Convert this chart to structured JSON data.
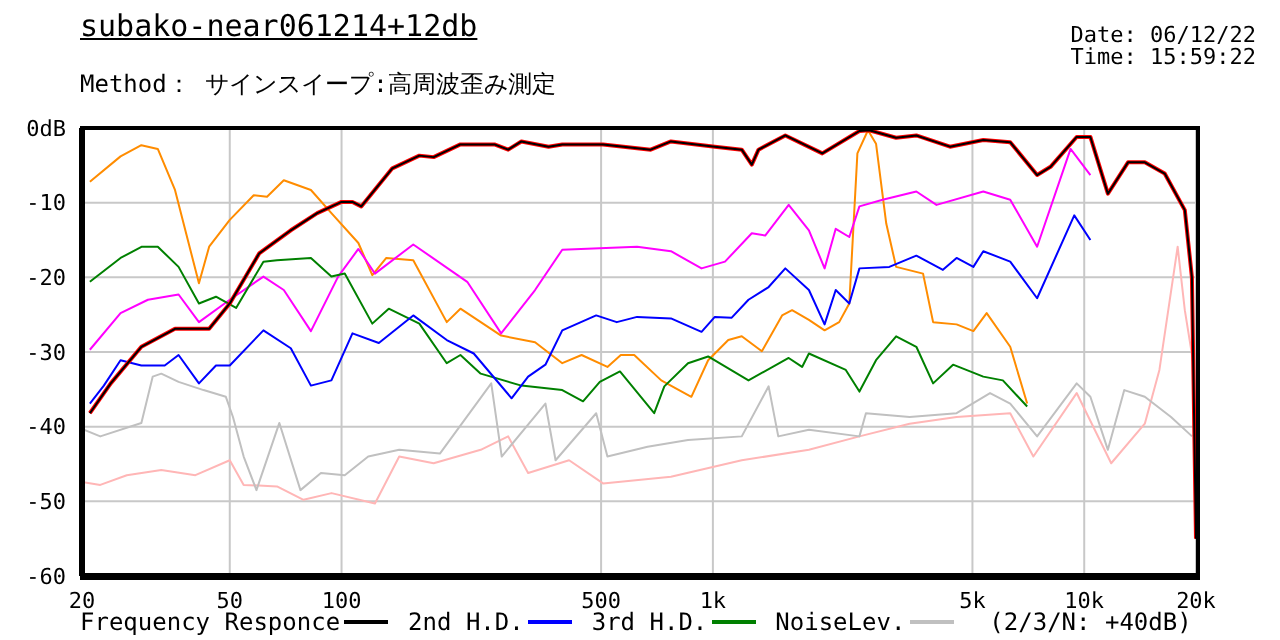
{
  "chart_data": {
    "type": "line",
    "title": "subako-near061214+12db",
    "subtitle": "Method： サインスイープ:高周波歪み測定",
    "annotations": [
      "Date: 06/12/22",
      "Time: 15:59:22",
      "(2/3/N: +40dB)"
    ],
    "xlim": [
      20,
      20000
    ],
    "xticks": [
      20,
      50,
      100,
      500,
      {
        "value": 1000,
        "label": "1k"
      },
      {
        "value": 5000,
        "label": "5k"
      },
      {
        "value": 10000,
        "label": "10k"
      },
      {
        "value": 20000,
        "label": "20k"
      }
    ],
    "ylim": [
      -60,
      0
    ],
    "yticks": [
      -60,
      -50,
      -40,
      -30,
      -20,
      -10,
      {
        "value": 0,
        "label": "0dB"
      }
    ],
    "log": "x",
    "grid": true,
    "legend": "bottom",
    "marker": "none",
    "line_style": "solid",
    "series": [
      {
        "color": "#ffb6b6",
        "x": [
          20,
          22.4,
          26.4,
          32.7,
          40.4,
          50,
          54.5,
          67,
          79,
          94,
          123,
          143,
          177,
          237,
          281,
          318,
          410,
          506,
          771,
          1196,
          1814,
          2481,
          3387,
          4532,
          6320,
          7296,
          9543,
          11820,
          14560,
          15940,
          17850,
          18660,
          19800
        ],
        "values": [
          -47.4,
          -47.8,
          -46.5,
          -45.8,
          -46.5,
          -44.5,
          -47.8,
          -48,
          -49.8,
          -48.9,
          -50.3,
          -44,
          -44.9,
          -43.1,
          -41.3,
          -46.2,
          -44.5,
          -47.6,
          -46.7,
          -44.5,
          -43.1,
          -41.3,
          -39.6,
          -38.7,
          -38.2,
          -44,
          -35.5,
          -44.9,
          -39.6,
          -32.4,
          -15.9,
          -24.4,
          -32.4
        ]
      },
      {
        "name": "NoiseLev.",
        "color": "#c0c0c0",
        "x": [
          20,
          22.4,
          28.9,
          31,
          32.7,
          36.4,
          42.5,
          48.8,
          51,
          54.5,
          59,
          68,
          77.5,
          88,
          102,
          118,
          143,
          184,
          253,
          270,
          354,
          377,
          485,
          520,
          667,
          857,
          1196,
          1413,
          1500,
          1814,
          2481,
          2583,
          3387,
          4532,
          5577,
          6320,
          7467,
          9543,
          10390,
          11580,
          12820,
          14560,
          17130,
          19520
        ],
        "values": [
          -40.3,
          -41.3,
          -39.5,
          -33.3,
          -32.9,
          -34,
          -35.1,
          -36,
          -38.7,
          -44,
          -48.5,
          -39.5,
          -48.5,
          -46.2,
          -46.5,
          -44,
          -43.1,
          -43.6,
          -34.2,
          -44,
          -36.9,
          -44.5,
          -38.2,
          -44,
          -42.7,
          -41.8,
          -41.3,
          -34.6,
          -41.3,
          -40.4,
          -41.3,
          -38.2,
          -38.7,
          -38.2,
          -35.5,
          -36.9,
          -41.3,
          -34.2,
          -36,
          -43.1,
          -35.1,
          -36,
          -38.7,
          -41.3
        ]
      },
      {
        "color": "#ff8c00",
        "x": [
          21,
          25.4,
          28.9,
          32,
          35.6,
          41.3,
          44,
          50,
          58,
          63,
          69.9,
          82.7,
          93.9,
          111,
          121,
          132,
          156,
          192,
          209,
          269,
          332,
          393,
          443,
          520,
          565,
          614,
          726,
          875,
          971,
          1100,
          1196,
          1355,
          1536,
          1634,
          1814,
          1999,
          2188,
          2330,
          2450,
          2616,
          2750,
          2930,
          3115,
          3681,
          3918,
          4532,
          5029,
          5461,
          6320,
          7020
        ],
        "values": [
          -7.2,
          -3.8,
          -2.3,
          -2.8,
          -8.3,
          -20.8,
          -15.9,
          -12.3,
          -9,
          -9.2,
          -7,
          -8.3,
          -11.4,
          -15.4,
          -19.7,
          -17.4,
          -17.7,
          -26,
          -24.2,
          -27.8,
          -28.7,
          -31.5,
          -30.4,
          -32,
          -30.4,
          -30.4,
          -33.8,
          -36,
          -31.1,
          -28.4,
          -27.9,
          -29.9,
          -25.1,
          -24.4,
          -25.7,
          -27.1,
          -26,
          -23.5,
          -3.4,
          -0.3,
          -2.1,
          -12.8,
          -18.6,
          -19.5,
          -26,
          -26.3,
          -27.2,
          -24.8,
          -29.3,
          -36.9
        ]
      },
      {
        "color": "#ff00ff",
        "x": [
          21,
          25.4,
          30.1,
          36.4,
          41.3,
          50,
          61.6,
          69.9,
          82.7,
          97.9,
          111,
          123,
          156,
          218,
          269,
          332,
          393,
          625,
          771,
          932,
          1078,
          1273,
          1383,
          1600,
          1814,
          1999,
          2142,
          2330,
          2481,
          2865,
          3531,
          4001,
          5348,
          6320,
          7467,
          9189,
          10390
        ],
        "values": [
          -29.7,
          -24.8,
          -23,
          -22.3,
          -26,
          -23,
          -19.9,
          -21.7,
          -27.2,
          -19.9,
          -16.2,
          -19.5,
          -15.6,
          -20.6,
          -27.5,
          -21.7,
          -16.3,
          -15.9,
          -16.5,
          -18.8,
          -17.9,
          -14.1,
          -14.4,
          -10.3,
          -13.7,
          -18.8,
          -13.5,
          -14.6,
          -10.5,
          -9.6,
          -8.5,
          -10.3,
          -8.5,
          -9.6,
          -15.9,
          -2.8,
          -6.3
        ]
      },
      {
        "name": "3rd H.D.",
        "color": "#008000",
        "x": [
          21,
          25.4,
          29,
          32,
          36.4,
          41.3,
          45.9,
          52,
          61.6,
          67,
          82.7,
          93.9,
          102,
          121,
          134,
          162,
          192,
          209,
          237,
          305,
          393,
          447,
          496,
          562,
          695,
          740,
          857,
          971,
          1247,
          1600,
          1739,
          1814,
          2280,
          2481,
          2750,
          3115,
          3531,
          3918,
          4434,
          5348,
          6038,
          7020
        ],
        "values": [
          -20.6,
          -17.4,
          -15.9,
          -15.9,
          -18.6,
          -23.5,
          -22.6,
          -24.1,
          -17.9,
          -17.7,
          -17.4,
          -19.9,
          -19.5,
          -26.2,
          -24.2,
          -26.2,
          -31.5,
          -30.4,
          -32.9,
          -34.5,
          -35.1,
          -36.6,
          -34,
          -32.6,
          -38.2,
          -34.6,
          -31.5,
          -30.6,
          -33.8,
          -30.8,
          -32,
          -30.2,
          -32.4,
          -35.3,
          -31.1,
          -27.9,
          -29.3,
          -34.2,
          -31.7,
          -33.3,
          -33.8,
          -37.3
        ]
      },
      {
        "name": "2nd H.D.",
        "color": "#0000ff",
        "x": [
          21,
          22.9,
          25.4,
          28.9,
          33.4,
          36.4,
          41.3,
          45.9,
          50,
          61.6,
          73,
          82.7,
          93.9,
          107,
          126,
          156,
          192,
          227,
          287,
          318,
          354,
          393,
          485,
          551,
          625,
          771,
          932,
          1012,
          1124,
          1247,
          1413,
          1567,
          1814,
          1999,
          2142,
          2330,
          2481,
          2986,
          3531,
          4164,
          4532,
          5029,
          5348,
          6320,
          7467,
          9401,
          10390
        ],
        "values": [
          -36.9,
          -34.5,
          -31.1,
          -31.8,
          -31.8,
          -30.4,
          -34.2,
          -31.8,
          -31.8,
          -27.1,
          -29.5,
          -34.5,
          -33.8,
          -27.5,
          -28.8,
          -25.1,
          -28.4,
          -30.2,
          -36.2,
          -33.3,
          -31.7,
          -27.1,
          -25.1,
          -26,
          -25.3,
          -25.5,
          -27.3,
          -25.3,
          -25.4,
          -23,
          -21.3,
          -18.8,
          -21.7,
          -26.3,
          -21.7,
          -23.5,
          -18.8,
          -18.6,
          -17.1,
          -19,
          -17.4,
          -18.6,
          -16.5,
          -17.9,
          -22.8,
          -11.7,
          -15
        ]
      },
      {
        "color": "#ff0000",
        "x": [
          21,
          23.9,
          28.9,
          35.6,
          44,
          50,
          60,
          73,
          86,
          100,
          107,
          113,
          137,
          162,
          177,
          209,
          258,
          281,
          305,
          361,
          393,
          506,
          680,
          771,
          1012,
          1196,
          1273,
          1327,
          1567,
          1971,
          2481,
          2638,
          3115,
          3531,
          4350,
          5348,
          6320,
          7467,
          8115,
          9543,
          10390,
          11580,
          13120,
          14560,
          16470,
          18660,
          19500,
          20000
        ],
        "values": [
          -38.2,
          -34.2,
          -29.3,
          -26.9,
          -26.9,
          -23.5,
          -16.8,
          -13.7,
          -11.4,
          -9.9,
          -9.9,
          -10.5,
          -5.4,
          -3.7,
          -3.9,
          -2.2,
          -2.2,
          -2.9,
          -1.8,
          -2.5,
          -2.2,
          -2.2,
          -2.9,
          -1.8,
          -2.5,
          -2.9,
          -4.9,
          -2.9,
          -1,
          -3.4,
          -0.4,
          -0.3,
          -1.3,
          -1,
          -2.5,
          -1.6,
          -1.9,
          -6.3,
          -5.2,
          -1.2,
          -1.2,
          -8.8,
          -4.6,
          -4.6,
          -6.1,
          -11,
          -20,
          -55
        ]
      },
      {
        "name": "Frequency Responce",
        "color": "#000000",
        "x": [
          21,
          23.9,
          28.9,
          35.6,
          44,
          50,
          60,
          73,
          86,
          100,
          107,
          113,
          137,
          162,
          177,
          209,
          258,
          281,
          305,
          361,
          393,
          506,
          680,
          771,
          1012,
          1196,
          1273,
          1327,
          1567,
          1971,
          2481,
          2638,
          3115,
          3531,
          4350,
          5348,
          6320,
          7467,
          8115,
          9543,
          10390,
          11580,
          13120,
          14560,
          16470,
          18660,
          19500,
          20000
        ],
        "values": [
          -38.2,
          -34.2,
          -29.3,
          -26.9,
          -26.9,
          -23.5,
          -16.8,
          -13.7,
          -11.4,
          -9.9,
          -9.9,
          -10.5,
          -5.4,
          -3.7,
          -3.9,
          -2.2,
          -2.2,
          -2.9,
          -1.8,
          -2.5,
          -2.2,
          -2.2,
          -2.9,
          -1.8,
          -2.5,
          -2.9,
          -4.9,
          -2.9,
          -1,
          -3.4,
          -0.4,
          -0.3,
          -1.3,
          -1,
          -2.5,
          -1.6,
          -1.9,
          -6.3,
          -5.2,
          -1.2,
          -1.2,
          -8.8,
          -4.6,
          -4.6,
          -6.1,
          -11,
          -20,
          -55
        ]
      }
    ]
  }
}
